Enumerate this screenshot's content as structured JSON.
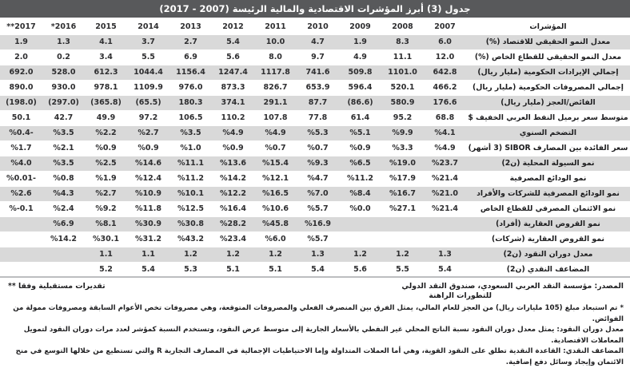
{
  "title": "جدول (3) أبرز المؤشرات الاقتصادية والمالية الرئيسة (2007 - 2017)",
  "table": {
    "indicator_header": "المؤشرات",
    "year_headers": [
      "**2017",
      "*2016",
      "2015",
      "2014",
      "2013",
      "2012",
      "2011",
      "2010",
      "2009",
      "2008",
      "2007"
    ],
    "rows": [
      {
        "label": "معدل النمو الحقيقي للاقتصاد  (%)",
        "values": [
          "1.9",
          "1.3",
          "4.1",
          "3.7",
          "2.7",
          "5.4",
          "10.0",
          "4.7",
          "1.9",
          "8.3",
          "6.0"
        ]
      },
      {
        "label": "معدل النمو الحقيقي للقطاع الخاص  (%)",
        "values": [
          "2.0",
          "0.2",
          "3.4",
          "5.5",
          "6.9",
          "5.6",
          "8.0",
          "9.7",
          "4.9",
          "11.1",
          "12.0"
        ]
      },
      {
        "label": "إجمالي الإيرادات الحكومية (مليار ريال)",
        "values": [
          "692.0",
          "528.0",
          "612.3",
          "1044.4",
          "1156.4",
          "1247.4",
          "1117.8",
          "741.6",
          "509.8",
          "1101.0",
          "642.8"
        ]
      },
      {
        "label": "إجمالي المصروفات الحكومية (مليار ريال)",
        "values": [
          "890.0",
          "930.0",
          "978.1",
          "1109.9",
          "976.0",
          "873.3",
          "826.7",
          "653.9",
          "596.4",
          "520.1",
          "466.2"
        ]
      },
      {
        "label": "الفائض/العجز (مليار ريال)",
        "values": [
          "(198.0)",
          "(297.0)",
          "(365.8)",
          "(65.5)",
          "180.3",
          "374.1",
          "291.1",
          "87.7",
          "(86.6)",
          "580.9",
          "176.6"
        ]
      },
      {
        "label": "متوسط سعر برميل النفط العربي الخفيف $",
        "values": [
          "50.1",
          "42.7",
          "49.9",
          "97.2",
          "106.5",
          "110.2",
          "107.8",
          "77.8",
          "61.4",
          "95.2",
          "68.8"
        ]
      },
      {
        "label": "التضخم السنوي",
        "values": [
          "%0.4-",
          "%3.5",
          "%2.2",
          "%2.7",
          "%3.5",
          "%4.9",
          "%4.9",
          "%5.3",
          "%5.1",
          "%9.9",
          "%4.1"
        ]
      },
      {
        "label": "سعر الفائدة بين المصارف SIBOR (3 أشهر)",
        "values": [
          "%1.7",
          "%2.1",
          "%0.9",
          "%0.9",
          "%1.0",
          "%0.9",
          "%0.7",
          "%0.7",
          "%0.9",
          "%3.3",
          "%4.9"
        ]
      },
      {
        "label": "نمو السيولة المحلية (ن2)",
        "values": [
          "%4.0",
          "%3.5",
          "%2.5",
          "%14.6",
          "%11.1",
          "%13.6",
          "%15.4",
          "%9.3",
          "%6.5",
          "%19.0",
          "%23.7"
        ]
      },
      {
        "label": "نمو الودائع المصرفية",
        "values": [
          "%0.01-",
          "%0.8",
          "%1.9",
          "%12.4",
          "%11.2",
          "%14.2",
          "%12.1",
          "%4.7",
          "%11.2",
          "%17.9",
          "%21.4"
        ]
      },
      {
        "label": "نمو الودائع المصرفية للشركات والأفراد",
        "values": [
          "%2.6",
          "%4.3",
          "%2.7",
          "%10.9",
          "%10.1",
          "%12.2",
          "%16.5",
          "%7.0",
          "%8.4",
          "%16.7",
          "%21.0"
        ]
      },
      {
        "label": "نمو الائتمان المصرفي للقطاع الخاص",
        "values": [
          "%-0.1",
          "%2.4",
          "%9.2",
          "%11.8",
          "%12.5",
          "%16.4",
          "%10.6",
          "%5.7",
          "%0.0",
          "%27.1",
          "%21.4"
        ]
      },
      {
        "label": "نمو القروض العقارية (أفراد)",
        "values": [
          "",
          "%6.9",
          "%8.1",
          "%30.9",
          "%30.8",
          "%28.2",
          "%45.8",
          "%16.9",
          "",
          "",
          ""
        ]
      },
      {
        "label": "نمو القروض العقارية (شركات)",
        "values": [
          "",
          "%14.2",
          "%30.1",
          "%31.2",
          "%43.2",
          "%23.4",
          "%6.0",
          "%5.7",
          "",
          "",
          ""
        ]
      },
      {
        "label": "معدل دوران النقود (ن2)",
        "values": [
          "",
          "",
          "1.1",
          "1.1",
          "1.2",
          "1.2",
          "1.2",
          "1.3",
          "1.2",
          "1.2",
          "1.3"
        ]
      },
      {
        "label": "المضاعف النقدي (ن2)",
        "values": [
          "",
          "",
          "5.2",
          "5.4",
          "5.3",
          "5.1",
          "5.1",
          "5.4",
          "5.6",
          "5.5",
          "5.4"
        ]
      }
    ]
  },
  "footer": {
    "source": "المصدر: مؤسسة النقد العربي السعودي، صندوق النقد الدولي",
    "estimate_marker": "**",
    "estimate_text_line1": "تقديرات مستقبلية وفقا",
    "estimate_text_line2": "للتطورات الراهنة",
    "notes": [
      "* تم استبعاد مبلغ (105 مليارات ريال) من العجز للعام المالي، يمثل الفرق بين المنصرف الفعلي والمصروفات المتوقعة، وهي مصروفات تخص الأعوام السابقة ومصروفات ممولة من الفوائض.",
      "معدل دوران النقود: يمثل معدل دوران النقود نسبة الناتج المحلي غير النفطي بالأسعار الجارية إلى متوسط عرض النقود، وتستخدم النسبة كمؤشر لعدد مرات دوران النقود لتمويل المعاملات الاقتصادية.",
      "المضاعف النقدي: القاعدة النقدية تطلق على النقود القوية، وهي أما العملات المتداولة وإما الاحتياطيات الإجمالية في المصارف التجارية R والتي تستطيع من خلالها التوسع في منح الائتمان وإيجاد وسائل دفع إضافية."
    ]
  },
  "colors": {
    "title_bar": "#58595b",
    "row_stripe": "#d9d9d9",
    "text": "#1d1d1f",
    "bottom_rule": "#bcbec0"
  }
}
